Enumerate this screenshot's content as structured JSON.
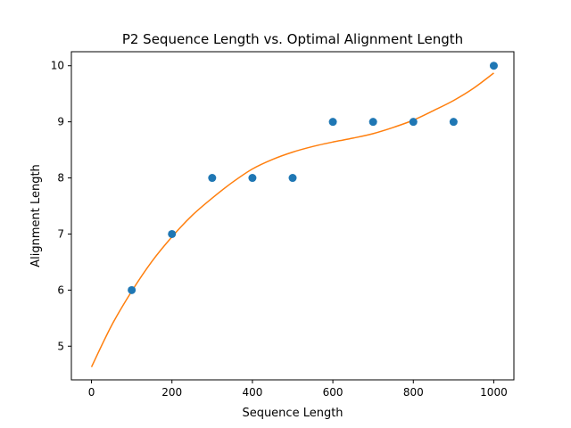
{
  "chart_data": {
    "type": "scatter",
    "title": "P2 Sequence Length vs. Optimal Alignment Length",
    "xlabel": "Sequence Length",
    "ylabel": "Alignment Length",
    "xlim": [
      -50,
      1050
    ],
    "ylim": [
      4.4,
      10.25
    ],
    "xticks": [
      0,
      200,
      400,
      600,
      800,
      1000
    ],
    "xtick_labels": [
      "0",
      "200",
      "400",
      "600",
      "800",
      "1000"
    ],
    "yticks": [
      5,
      6,
      7,
      8,
      9,
      10
    ],
    "ytick_labels": [
      "5",
      "6",
      "7",
      "8",
      "9",
      "10"
    ],
    "grid": false,
    "colors": {
      "points": "#1f77b4",
      "fit": "#ff7f0e"
    },
    "points": {
      "x": [
        100,
        200,
        300,
        400,
        500,
        600,
        700,
        800,
        900,
        1000
      ],
      "y": [
        6,
        7,
        8,
        8,
        8,
        9,
        9,
        9,
        9,
        10
      ]
    },
    "fit_curve": {
      "x": [
        0,
        50,
        100,
        150,
        200,
        250,
        300,
        350,
        400,
        450,
        500,
        550,
        600,
        650,
        700,
        750,
        800,
        850,
        900,
        950,
        1000
      ],
      "y": [
        4.63,
        5.37,
        5.98,
        6.51,
        6.95,
        7.33,
        7.64,
        7.92,
        8.16,
        8.33,
        8.46,
        8.56,
        8.64,
        8.71,
        8.79,
        8.9,
        9.03,
        9.2,
        9.38,
        9.6,
        9.87
      ]
    }
  }
}
